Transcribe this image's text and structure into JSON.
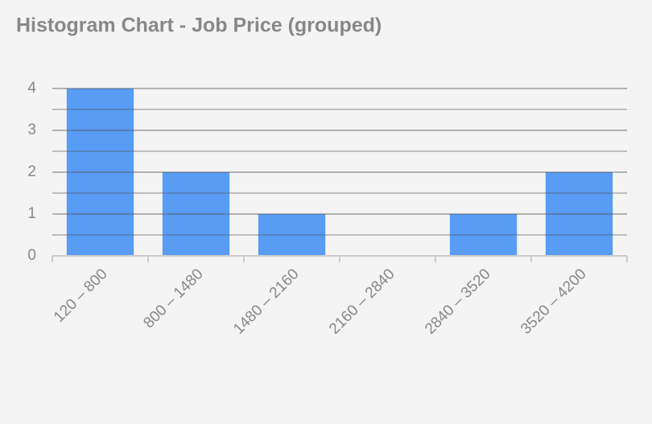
{
  "chart_data": {
    "type": "bar",
    "title": "Histogram Chart - Job Price (grouped)",
    "categories": [
      "120 – 800",
      "800 – 1480",
      "1480 – 2160",
      "2160 – 2840",
      "2840 – 3520",
      "3520 – 4200"
    ],
    "values": [
      4,
      2,
      1,
      0,
      1,
      2
    ],
    "color": "#589cf4",
    "ylim": [
      0,
      4
    ],
    "yticks": [
      0,
      1,
      2,
      3,
      4
    ],
    "minor_yticks": [
      0.5,
      1.5,
      2.5,
      3.5
    ],
    "grid": true
  }
}
